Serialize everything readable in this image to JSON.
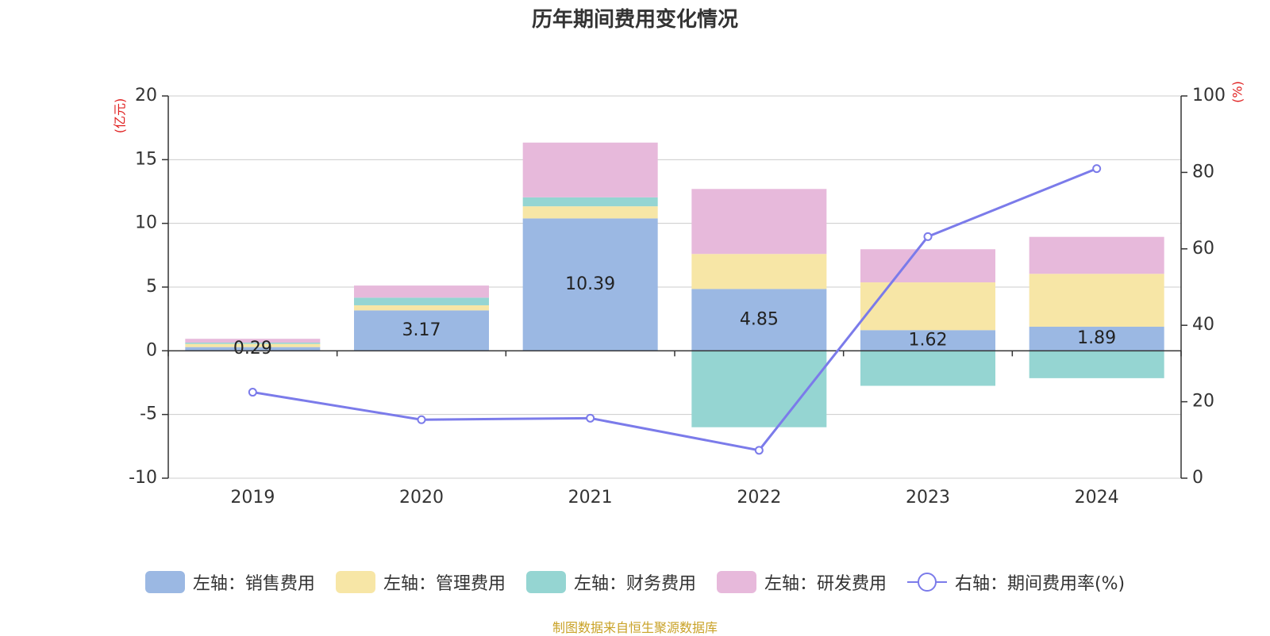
{
  "chart_data": {
    "type": "bar",
    "title": "历年期间费用变化情况",
    "categories": [
      "2019",
      "2020",
      "2021",
      "2022",
      "2023",
      "2024"
    ],
    "series": [
      {
        "name": "左轴：销售费用",
        "axis": "left",
        "color": "#9bb8e3",
        "values": [
          0.29,
          3.17,
          10.39,
          4.85,
          1.62,
          1.89
        ],
        "labels": [
          "0.29",
          "3.17",
          "10.39",
          "4.85",
          "1.62",
          "1.89"
        ]
      },
      {
        "name": "左轴：管理费用",
        "axis": "left",
        "color": "#f7e6a6",
        "values": [
          0.25,
          0.4,
          0.95,
          2.75,
          3.75,
          4.15
        ]
      },
      {
        "name": "左轴：财务费用",
        "axis": "left",
        "color": "#95d5d2",
        "values": [
          0.1,
          0.6,
          0.7,
          -6.0,
          -2.75,
          -2.15
        ]
      },
      {
        "name": "左轴：研发费用",
        "axis": "left",
        "color": "#e7b9db",
        "values": [
          0.3,
          0.95,
          4.3,
          5.1,
          2.6,
          2.9
        ]
      },
      {
        "name": "右轴：期间费用率(%)",
        "axis": "right",
        "type": "line",
        "color": "#7b7bea",
        "values": [
          22.5,
          15.3,
          15.7,
          7.3,
          63.2,
          81.0
        ]
      }
    ],
    "y_left": {
      "unit": "(亿元)",
      "ylim": [
        -10,
        20
      ],
      "ticks": [
        "20",
        "15",
        "10",
        "5",
        "0",
        "-5",
        "-10"
      ]
    },
    "y_right": {
      "unit": "(%)",
      "ylim": [
        0,
        100
      ],
      "ticks": [
        "100",
        "80",
        "60",
        "40",
        "20",
        "0"
      ]
    },
    "grid": true,
    "legend_position": "bottom"
  },
  "source_text": "制图数据来自恒生聚源数据库"
}
